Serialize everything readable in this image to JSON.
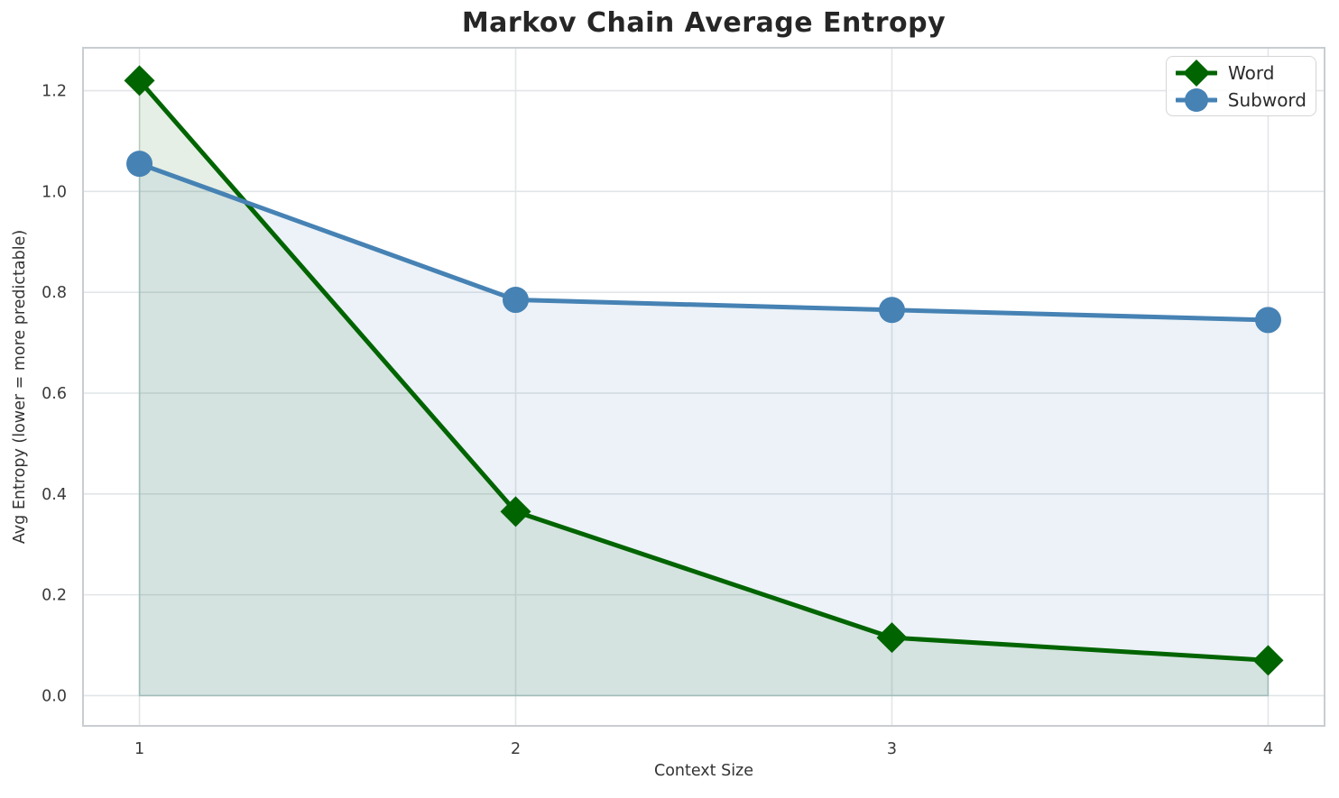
{
  "chart_data": {
    "type": "line",
    "title": "Markov Chain Average Entropy",
    "xlabel": "Context Size",
    "ylabel": "Avg Entropy (lower = more predictable)",
    "x": [
      1,
      2,
      3,
      4
    ],
    "series": [
      {
        "name": "Word",
        "color": "#006400",
        "marker": "diamond",
        "values": [
          1.22,
          0.365,
          0.115,
          0.07
        ],
        "fill_to_zero": true,
        "fill_opacity": 0.1
      },
      {
        "name": "Subword",
        "color": "#4682B4",
        "marker": "circle",
        "values": [
          1.055,
          0.785,
          0.765,
          0.745
        ],
        "fill_to_zero": true,
        "fill_opacity": 0.1
      }
    ],
    "xticks": [
      "1",
      "2",
      "3",
      "4"
    ],
    "yticks": [
      "0.0",
      "0.2",
      "0.4",
      "0.6",
      "0.8",
      "1.0",
      "1.2"
    ],
    "xlim": [
      0.85,
      4.15
    ],
    "ylim": [
      -0.06,
      1.285
    ],
    "grid": true,
    "grid_color": "#e2e5e8",
    "spine_color": "#c9cdd1",
    "tick_color": "#3a3a3a",
    "legend": {
      "position": "upper right",
      "labels": [
        "Word",
        "Subword"
      ]
    }
  }
}
